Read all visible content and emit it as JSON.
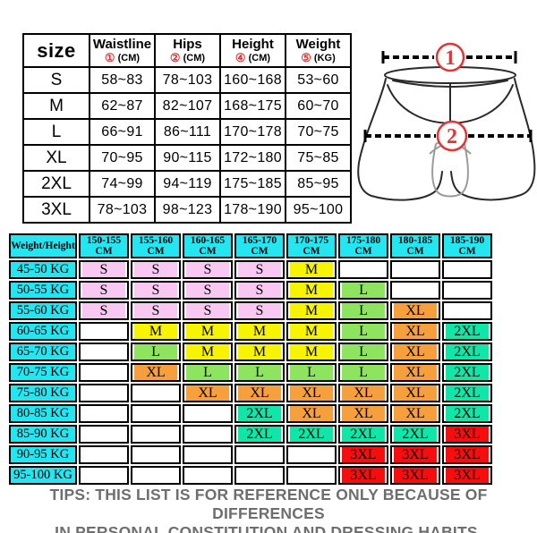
{
  "colors": {
    "cyan": "#24e6f1",
    "pink": "#f8c8f2",
    "yellow": "#f6f400",
    "green": "#8ee45f",
    "orange": "#f5a03c",
    "spring": "#0fe6a8",
    "red": "#f60d0d",
    "accent_red": "#e53434",
    "tips_gray": "#6e6e6e"
  },
  "size_table": {
    "corner_label": "size",
    "columns": [
      {
        "label": "Waistline",
        "mark": "①",
        "unit": "(CM)"
      },
      {
        "label": "Hips",
        "mark": "②",
        "unit": "(CM)"
      },
      {
        "label": "Height",
        "mark": "④",
        "unit": "(CM)"
      },
      {
        "label": "Weight",
        "mark": "⑤",
        "unit": "(KG)"
      }
    ],
    "rows": [
      {
        "size": "S",
        "values": [
          "58~83",
          "78~103",
          "160~168",
          "53~60"
        ]
      },
      {
        "size": "M",
        "values": [
          "62~87",
          "82~107",
          "168~175",
          "60~70"
        ]
      },
      {
        "size": "L",
        "values": [
          "66~91",
          "86~111",
          "170~178",
          "70~75"
        ]
      },
      {
        "size": "XL",
        "values": [
          "70~95",
          "90~115",
          "172~180",
          "75~85"
        ]
      },
      {
        "size": "2XL",
        "values": [
          "74~99",
          "94~119",
          "175~185",
          "85~95"
        ]
      },
      {
        "size": "3XL",
        "values": [
          "78~103",
          "98~123",
          "178~190",
          "95~100"
        ]
      }
    ]
  },
  "diagram": {
    "marks": [
      {
        "n": "1"
      },
      {
        "n": "2"
      }
    ]
  },
  "matrix": {
    "corner": "Weight/Height",
    "col_headers": [
      "150-155 CM",
      "155-160 CM",
      "160-165 CM",
      "165-170 CM",
      "170-175 CM",
      "175-180 CM",
      "180-185 CM",
      "185-190 CM"
    ],
    "rows": [
      {
        "label": "45-50 KG",
        "cells": [
          {
            "t": "S",
            "c": "pink"
          },
          {
            "t": "S",
            "c": "pink"
          },
          {
            "t": "S",
            "c": "pink"
          },
          {
            "t": "S",
            "c": "pink"
          },
          {
            "t": "M",
            "c": "yellow"
          },
          null,
          null,
          null
        ]
      },
      {
        "label": "50-55 KG",
        "cells": [
          {
            "t": "S",
            "c": "pink"
          },
          {
            "t": "S",
            "c": "pink"
          },
          {
            "t": "S",
            "c": "pink"
          },
          {
            "t": "S",
            "c": "pink"
          },
          {
            "t": "M",
            "c": "yellow"
          },
          {
            "t": "L",
            "c": "green"
          },
          null,
          null
        ]
      },
      {
        "label": "55-60 KG",
        "cells": [
          {
            "t": "S",
            "c": "pink"
          },
          {
            "t": "S",
            "c": "pink"
          },
          {
            "t": "S",
            "c": "pink"
          },
          {
            "t": "S",
            "c": "pink"
          },
          {
            "t": "M",
            "c": "yellow"
          },
          {
            "t": "L",
            "c": "green"
          },
          {
            "t": "XL",
            "c": "orange"
          },
          null
        ]
      },
      {
        "label": "60-65 KG",
        "cells": [
          null,
          {
            "t": "M",
            "c": "yellow"
          },
          {
            "t": "M",
            "c": "yellow"
          },
          {
            "t": "M",
            "c": "yellow"
          },
          {
            "t": "M",
            "c": "yellow"
          },
          {
            "t": "L",
            "c": "green"
          },
          {
            "t": "XL",
            "c": "orange"
          },
          {
            "t": "2XL",
            "c": "spring"
          }
        ]
      },
      {
        "label": "65-70 KG",
        "cells": [
          null,
          {
            "t": "L",
            "c": "green"
          },
          {
            "t": "M",
            "c": "yellow"
          },
          {
            "t": "M",
            "c": "yellow"
          },
          {
            "t": "M",
            "c": "yellow"
          },
          {
            "t": "L",
            "c": "green"
          },
          {
            "t": "XL",
            "c": "orange"
          },
          {
            "t": "2XL",
            "c": "spring"
          }
        ]
      },
      {
        "label": "70-75 KG",
        "cells": [
          null,
          {
            "t": "XL",
            "c": "orange"
          },
          {
            "t": "L",
            "c": "green"
          },
          {
            "t": "L",
            "c": "green"
          },
          {
            "t": "L",
            "c": "green"
          },
          {
            "t": "L",
            "c": "green"
          },
          {
            "t": "XL",
            "c": "orange"
          },
          {
            "t": "2XL",
            "c": "spring"
          }
        ]
      },
      {
        "label": "75-80 KG",
        "cells": [
          null,
          null,
          {
            "t": "XL",
            "c": "orange"
          },
          {
            "t": "XL",
            "c": "orange"
          },
          {
            "t": "XL",
            "c": "orange"
          },
          {
            "t": "XL",
            "c": "orange"
          },
          {
            "t": "XL",
            "c": "orange"
          },
          {
            "t": "2XL",
            "c": "spring"
          }
        ]
      },
      {
        "label": "80-85 KG",
        "cells": [
          null,
          null,
          null,
          {
            "t": "2XL",
            "c": "spring"
          },
          {
            "t": "XL",
            "c": "orange"
          },
          {
            "t": "XL",
            "c": "orange"
          },
          {
            "t": "XL",
            "c": "orange"
          },
          {
            "t": "2XL",
            "c": "spring"
          }
        ]
      },
      {
        "label": "85-90 KG",
        "cells": [
          null,
          null,
          null,
          {
            "t": "2XL",
            "c": "spring"
          },
          {
            "t": "2XL",
            "c": "spring"
          },
          {
            "t": "2XL",
            "c": "spring"
          },
          {
            "t": "2XL",
            "c": "spring"
          },
          {
            "t": "3XL",
            "c": "red"
          }
        ]
      },
      {
        "label": "90-95 KG",
        "cells": [
          null,
          null,
          null,
          null,
          null,
          {
            "t": "3XL",
            "c": "red"
          },
          {
            "t": "3XL",
            "c": "red"
          },
          {
            "t": "3XL",
            "c": "red"
          }
        ]
      },
      {
        "label": "95-100 KG",
        "cells": [
          null,
          null,
          null,
          null,
          null,
          {
            "t": "3XL",
            "c": "red"
          },
          {
            "t": "3XL",
            "c": "red"
          },
          {
            "t": "3XL",
            "c": "red"
          }
        ]
      }
    ]
  },
  "tips": {
    "line1": "TIPS: THIS LIST IS FOR REFERENCE ONLY BECAUSE OF DIFFERENCES",
    "line2": "IN PERSONAL CONSTITUTION AND DRESSING HABITS."
  }
}
